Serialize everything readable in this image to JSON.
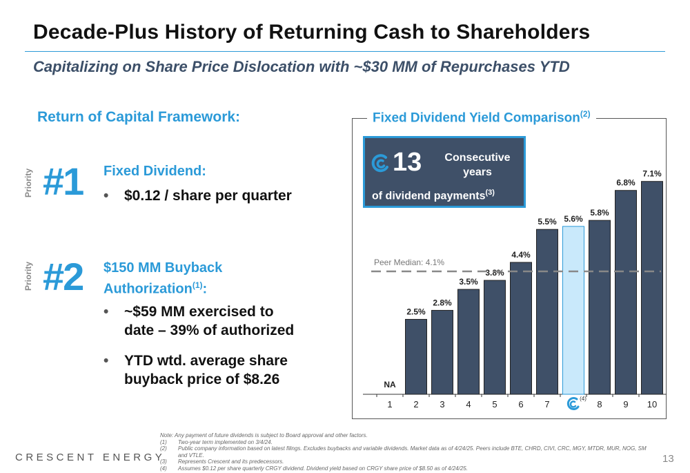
{
  "header": {
    "title": "Decade-Plus History of Returning Cash to Shareholders",
    "subtitle": "Capitalizing on Share Price Dislocation with ~$30 MM of Repurchases YTD"
  },
  "framework": {
    "heading": "Return of Capital Framework:",
    "priority_label": "Priority",
    "items": [
      {
        "rank": "#1",
        "heading": "Fixed Dividend:",
        "bullets": [
          "$0.12 / share per quarter"
        ]
      },
      {
        "rank": "#2",
        "heading_line1": "$150 MM Buyback",
        "heading_line2": "Authorization",
        "heading_sup": "(1)",
        "heading_suffix": ":",
        "bullets": [
          {
            "line1": "~$59 MM exercised to",
            "line2": "date – 39% of authorized"
          },
          {
            "line1": "YTD wtd. average share",
            "line2": "buyback price of $8.26"
          }
        ]
      }
    ]
  },
  "chart_panel": {
    "heading": "Fixed Dividend Yield Comparison",
    "heading_sup": "(2)",
    "callout": {
      "number": "13",
      "line1": "Consecutive",
      "line2": "years",
      "line3": "of dividend payments",
      "line3_sup": "(3)"
    }
  },
  "chart_data": {
    "type": "bar",
    "categories": [
      "1",
      "2",
      "3",
      "4",
      "5",
      "6",
      "7",
      "",
      "8",
      "9",
      "10"
    ],
    "values": [
      null,
      2.5,
      2.8,
      3.5,
      3.8,
      4.4,
      5.5,
      5.6,
      5.8,
      6.8,
      7.1
    ],
    "labels": [
      "NA",
      "2.5%",
      "2.8%",
      "3.5%",
      "3.8%",
      "4.4%",
      "5.5%",
      "5.6%",
      "5.8%",
      "6.8%",
      "7.1%"
    ],
    "highlight_index": 7,
    "highlight_tick_note": "(4)",
    "reference_line": {
      "value": 4.1,
      "label": "Peer Median: 4.1%"
    },
    "ylim": [
      0,
      7.6
    ],
    "colors": {
      "bar": "#3f5068",
      "highlight": "#c9e9fb",
      "reference": "#888888",
      "accent": "#2b9ad8"
    }
  },
  "footnotes": [
    {
      "num": "",
      "text": "Note: Any payment of future dividends is subject to Board approval and other factors."
    },
    {
      "num": "(1)",
      "text": "Two-year term implemented on 3/4/24."
    },
    {
      "num": "(2)",
      "text": "Public company information based on latest filings. Excludes buybacks and variable dividends. Market data as of 4/24/25. Peers include BTE, CHRD, CIVI, CRC, MGY, MTDR, MUR, NOG, SM and VTLE."
    },
    {
      "num": "(3)",
      "text": "Represents Crescent and its predecessors."
    },
    {
      "num": "(4)",
      "text": "Assumes $0.12 per share quarterly CRGY dividend. Dividend yield based on CRGY share price of $8.50 as of 4/24/25."
    }
  ],
  "footer": {
    "brand": "CRESCENT ENERGY",
    "page_number": "13"
  }
}
